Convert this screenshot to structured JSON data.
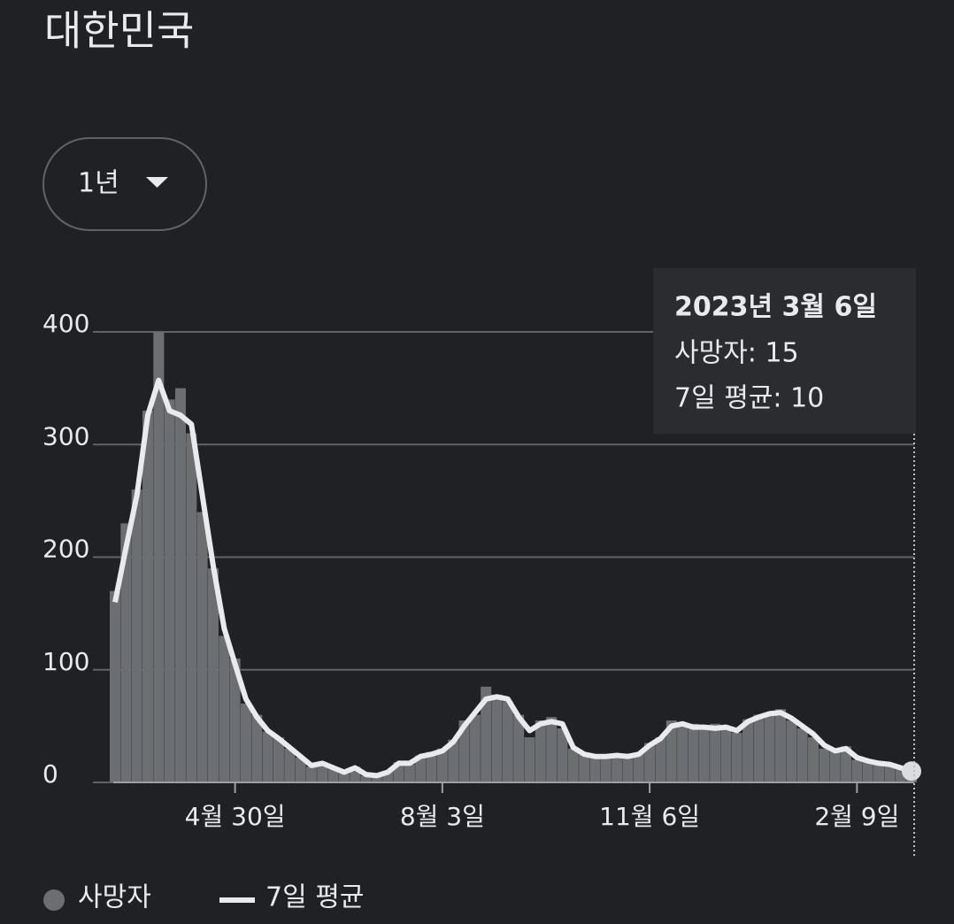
{
  "header": {
    "title": "대한민국",
    "range_button": "1년"
  },
  "chart_data": {
    "type": "bar",
    "categories": [
      null,
      null,
      null,
      null,
      null,
      null,
      null,
      null,
      null,
      null,
      null,
      "4월 30일",
      null,
      null,
      null,
      null,
      null,
      null,
      null,
      null,
      null,
      null,
      null,
      null,
      null,
      null,
      null,
      null,
      null,
      null,
      "8월 3일",
      null,
      null,
      null,
      null,
      null,
      null,
      null,
      null,
      null,
      null,
      null,
      null,
      null,
      null,
      null,
      null,
      null,
      null,
      "11월 6일",
      null,
      null,
      null,
      null,
      null,
      null,
      null,
      null,
      null,
      null,
      null,
      null,
      null,
      null,
      null,
      null,
      null,
      null,
      "2월 9일",
      null,
      null,
      null,
      null,
      null
    ],
    "series": [
      {
        "name": "사망자",
        "type": "bar",
        "color": "#6b6e72",
        "values": [
          170,
          230,
          260,
          330,
          400,
          340,
          350,
          310,
          240,
          190,
          130,
          110,
          70,
          60,
          45,
          40,
          30,
          22,
          14,
          18,
          12,
          8,
          14,
          6,
          7,
          10,
          18,
          16,
          24,
          27,
          30,
          38,
          55,
          60,
          85,
          78,
          72,
          60,
          40,
          55,
          58,
          48,
          30,
          26,
          22,
          25,
          22,
          24,
          26,
          35,
          40,
          55,
          50,
          52,
          47,
          52,
          48,
          44,
          56,
          60,
          62,
          65,
          55,
          48,
          40,
          30,
          28,
          32,
          20,
          18,
          16,
          14,
          12,
          15
        ]
      },
      {
        "name": "7일 평균",
        "type": "line",
        "color": "#e8eaed",
        "values": [
          160,
          208,
          255,
          326,
          357,
          330,
          326,
          318,
          255,
          192,
          137,
          105,
          74,
          58,
          46,
          39,
          31,
          23,
          15,
          17,
          13,
          9,
          13,
          7,
          6,
          9,
          17,
          17,
          23,
          25,
          28,
          36,
          50,
          62,
          74,
          76,
          74,
          58,
          46,
          52,
          54,
          52,
          31,
          25,
          23,
          23,
          24,
          23,
          25,
          33,
          39,
          50,
          52,
          49,
          49,
          48,
          49,
          46,
          54,
          58,
          61,
          62,
          57,
          50,
          43,
          33,
          28,
          30,
          22,
          19,
          17,
          16,
          13,
          10
        ]
      }
    ],
    "ylim": [
      0,
      400
    ],
    "yticks": [
      0,
      100,
      200,
      300,
      400
    ],
    "grid": true,
    "tooltip": {
      "title": "2023년 3월 6일",
      "lines": [
        "사망자: 15",
        "7일 평균: 10"
      ]
    }
  }
}
